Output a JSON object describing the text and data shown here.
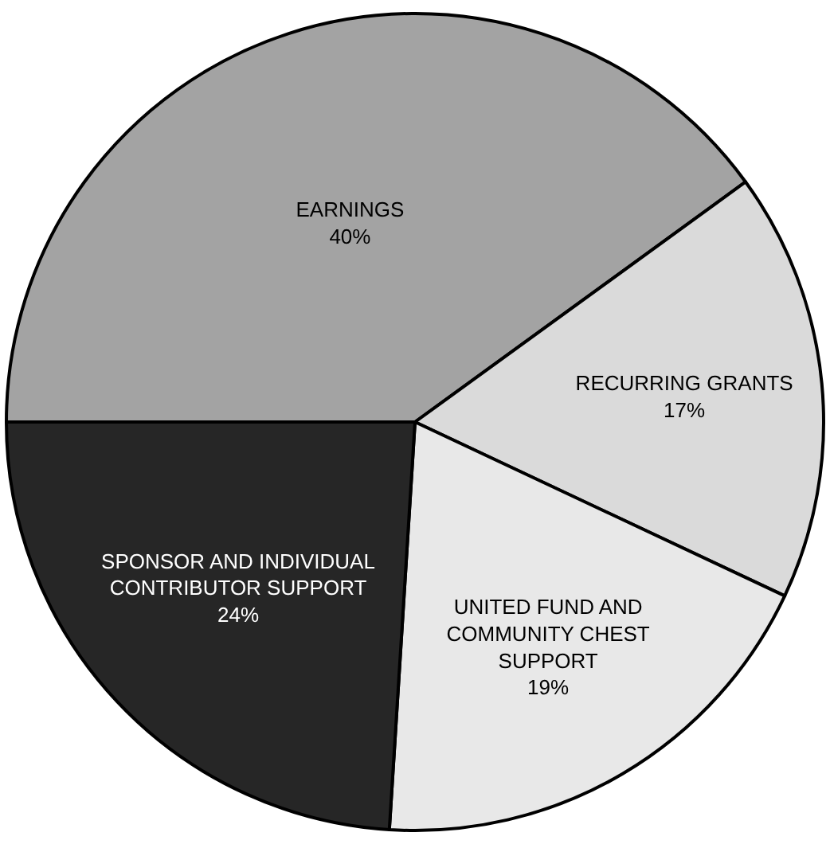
{
  "chart_data": {
    "type": "pie",
    "categories": [
      "EARNINGS",
      "RECURRING GRANTS",
      "UNITED FUND AND COMMUNITY CHEST SUPPORT",
      "SPONSOR AND INDIVIDUAL CONTRIBUTOR SUPPORT"
    ],
    "values": [
      40,
      17,
      19,
      24
    ],
    "colors": [
      "#a3a3a3",
      "#dadada",
      "#e8e8e8",
      "#262626"
    ],
    "value_labels": [
      "40%",
      "17%",
      "19%",
      "24%"
    ],
    "legend": false
  }
}
